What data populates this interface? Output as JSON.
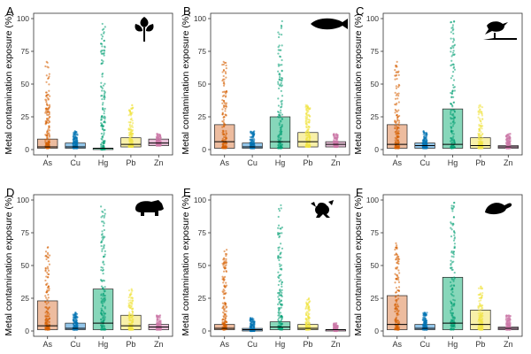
{
  "figure": {
    "ylabel": "Metal contamination exposure (%)",
    "categories": [
      "As",
      "Cu",
      "Hg",
      "Pb",
      "Zn"
    ],
    "colors": {
      "As": "#D55E00",
      "Cu": "#0072B2",
      "Hg": "#009E73",
      "Pb": "#F0E442",
      "Zn": "#CC79A7"
    },
    "fill_colors": {
      "As": "#E7A57F",
      "Cu": "#6FB3E3",
      "Hg": "#5FC9A3",
      "Pb": "#F5EB8C",
      "Zn": "#DDA8C8"
    },
    "yticks": [
      0,
      25,
      50,
      75,
      100
    ],
    "ylim": [
      0,
      100
    ]
  },
  "panels": [
    {
      "id": "A",
      "icon": "plant-icon"
    },
    {
      "id": "B",
      "icon": "fish-icon"
    },
    {
      "id": "C",
      "icon": "bird-icon"
    },
    {
      "id": "D",
      "icon": "mammal-icon"
    },
    {
      "id": "E",
      "icon": "frog-icon"
    },
    {
      "id": "F",
      "icon": "turtle-icon"
    }
  ],
  "chart_data": [
    {
      "type": "box",
      "title": "A",
      "xlabel": "",
      "ylabel": "Metal contamination exposure (%)",
      "ylim": [
        0,
        100
      ],
      "categories": [
        "As",
        "Cu",
        "Hg",
        "Pb",
        "Zn"
      ],
      "series": [
        {
          "name": "As",
          "q1": 1,
          "median": 2,
          "q3": 8,
          "max_point": 67
        },
        {
          "name": "Cu",
          "q1": 1,
          "median": 2,
          "q3": 5,
          "max_point": 14
        },
        {
          "name": "Hg",
          "q1": 0,
          "median": 1,
          "q3": 1,
          "max_point": 96
        },
        {
          "name": "Pb",
          "q1": 2,
          "median": 4,
          "q3": 9,
          "max_point": 34
        },
        {
          "name": "Zn",
          "q1": 3,
          "median": 5,
          "q3": 8,
          "max_point": 12
        }
      ]
    },
    {
      "type": "box",
      "title": "B",
      "xlabel": "",
      "ylabel": "Metal contamination exposure (%)",
      "ylim": [
        0,
        100
      ],
      "categories": [
        "As",
        "Cu",
        "Hg",
        "Pb",
        "Zn"
      ],
      "series": [
        {
          "name": "As",
          "q1": 1,
          "median": 6,
          "q3": 19,
          "max_point": 67
        },
        {
          "name": "Cu",
          "q1": 1,
          "median": 2,
          "q3": 5,
          "max_point": 14
        },
        {
          "name": "Hg",
          "q1": 1,
          "median": 6,
          "q3": 25,
          "max_point": 98
        },
        {
          "name": "Pb",
          "q1": 2,
          "median": 6,
          "q3": 13,
          "max_point": 34
        },
        {
          "name": "Zn",
          "q1": 2,
          "median": 4,
          "q3": 6,
          "max_point": 12
        }
      ]
    },
    {
      "type": "box",
      "title": "C",
      "xlabel": "",
      "ylabel": "Metal contamination exposure (%)",
      "ylim": [
        0,
        100
      ],
      "categories": [
        "As",
        "Cu",
        "Hg",
        "Pb",
        "Zn"
      ],
      "series": [
        {
          "name": "As",
          "q1": 1,
          "median": 4,
          "q3": 19,
          "max_point": 67
        },
        {
          "name": "Cu",
          "q1": 1,
          "median": 3,
          "q3": 5,
          "max_point": 14
        },
        {
          "name": "Hg",
          "q1": 1,
          "median": 4,
          "q3": 31,
          "max_point": 98
        },
        {
          "name": "Pb",
          "q1": 1,
          "median": 3,
          "q3": 9,
          "max_point": 34
        },
        {
          "name": "Zn",
          "q1": 1,
          "median": 2,
          "q3": 3,
          "max_point": 12
        }
      ]
    },
    {
      "type": "box",
      "title": "D",
      "xlabel": "",
      "ylabel": "Metal contamination exposure (%)",
      "ylim": [
        0,
        100
      ],
      "categories": [
        "As",
        "Cu",
        "Hg",
        "Pb",
        "Zn"
      ],
      "series": [
        {
          "name": "As",
          "q1": 1,
          "median": 4,
          "q3": 23,
          "max_point": 64
        },
        {
          "name": "Cu",
          "q1": 1,
          "median": 2,
          "q3": 6,
          "max_point": 14
        },
        {
          "name": "Hg",
          "q1": 1,
          "median": 6,
          "q3": 32,
          "max_point": 95
        },
        {
          "name": "Pb",
          "q1": 1,
          "median": 4,
          "q3": 12,
          "max_point": 32
        },
        {
          "name": "Zn",
          "q1": 1,
          "median": 3,
          "q3": 5,
          "max_point": 12
        }
      ]
    },
    {
      "type": "box",
      "title": "E",
      "xlabel": "",
      "ylabel": "Metal contamination exposure (%)",
      "ylim": [
        0,
        100
      ],
      "categories": [
        "As",
        "Cu",
        "Hg",
        "Pb",
        "Zn"
      ],
      "series": [
        {
          "name": "As",
          "q1": 1,
          "median": 2,
          "q3": 5,
          "max_point": 62
        },
        {
          "name": "Cu",
          "q1": 0,
          "median": 1,
          "q3": 2,
          "max_point": 10
        },
        {
          "name": "Hg",
          "q1": 1,
          "median": 3,
          "q3": 7,
          "max_point": 96
        },
        {
          "name": "Pb",
          "q1": 1,
          "median": 2,
          "q3": 5,
          "max_point": 25
        },
        {
          "name": "Zn",
          "q1": 0,
          "median": 1,
          "q3": 1,
          "max_point": 6
        }
      ]
    },
    {
      "type": "box",
      "title": "F",
      "xlabel": "",
      "ylabel": "Metal contamination exposure (%)",
      "ylim": [
        0,
        100
      ],
      "categories": [
        "As",
        "Cu",
        "Hg",
        "Pb",
        "Zn"
      ],
      "series": [
        {
          "name": "As",
          "q1": 1,
          "median": 5,
          "q3": 27,
          "max_point": 67
        },
        {
          "name": "Cu",
          "q1": 1,
          "median": 2,
          "q3": 5,
          "max_point": 14
        },
        {
          "name": "Hg",
          "q1": 1,
          "median": 6,
          "q3": 41,
          "max_point": 98
        },
        {
          "name": "Pb",
          "q1": 1,
          "median": 5,
          "q3": 16,
          "max_point": 34
        },
        {
          "name": "Zn",
          "q1": 1,
          "median": 2,
          "q3": 3,
          "max_point": 12
        }
      ]
    }
  ]
}
